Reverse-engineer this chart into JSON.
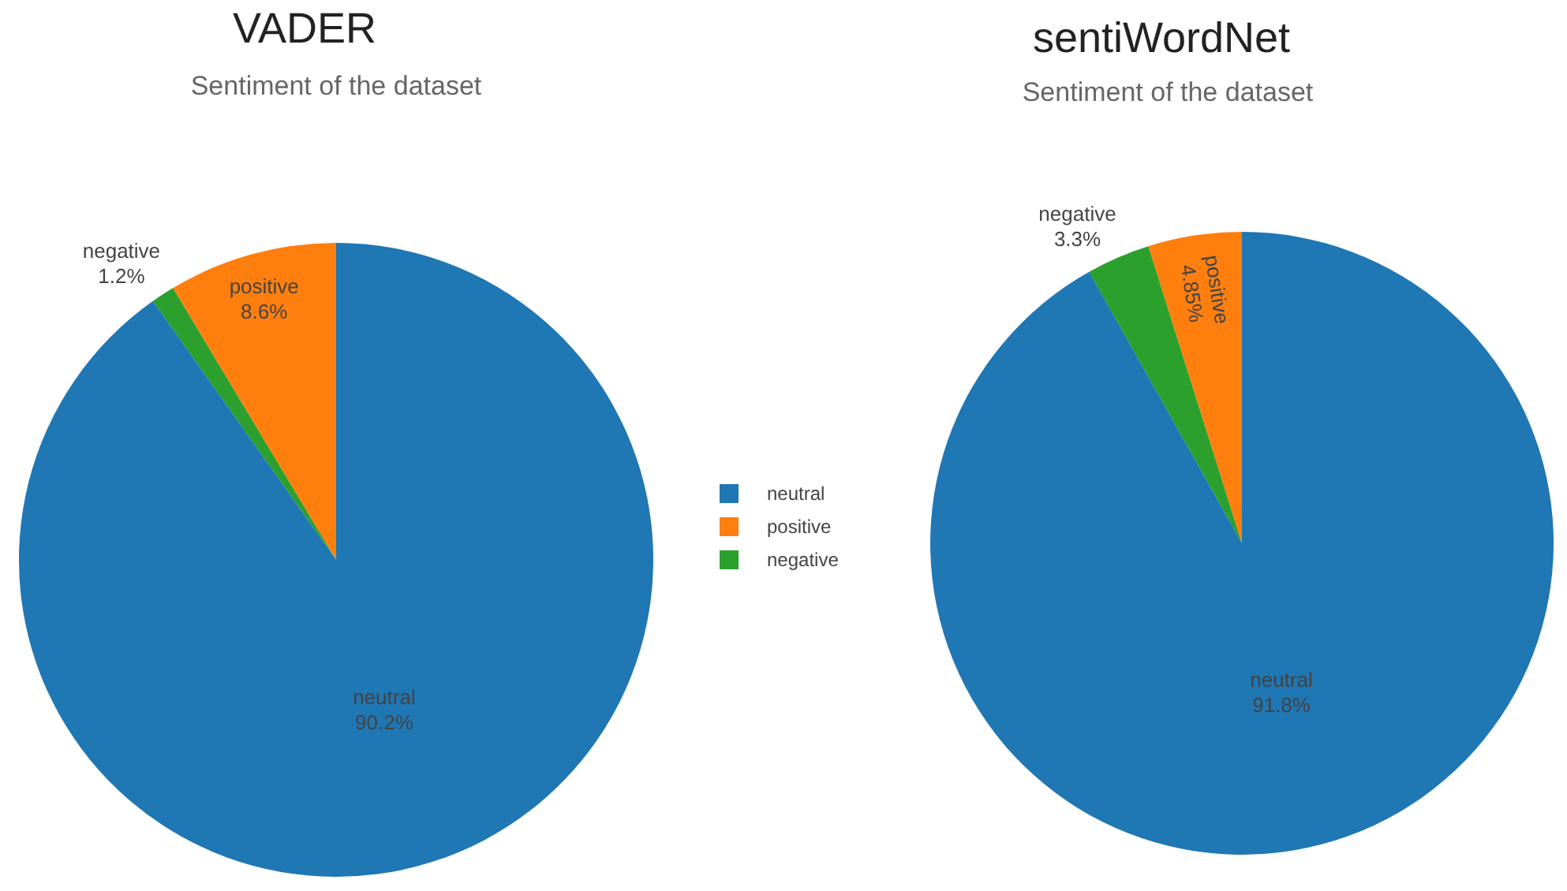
{
  "chart_data": [
    {
      "type": "pie",
      "title": "VADER",
      "subtitle": "Sentiment of the dataset",
      "categories": [
        "neutral",
        "positive",
        "negative"
      ],
      "values": [
        90.2,
        8.6,
        1.2
      ],
      "colors": [
        "#1f77b4",
        "#ff7f0e",
        "#2ca02c"
      ],
      "value_labels": [
        "90.2%",
        "8.6%",
        "1.2%"
      ],
      "legend": "right"
    },
    {
      "type": "pie",
      "title": "sentiWordNet",
      "subtitle": "Sentiment of the dataset",
      "categories": [
        "neutral",
        "positive",
        "negative"
      ],
      "values": [
        91.8,
        4.85,
        3.3
      ],
      "colors": [
        "#1f77b4",
        "#ff7f0e",
        "#2ca02c"
      ],
      "value_labels": [
        "91.8%",
        "4.85%",
        "3.3%"
      ]
    }
  ]
}
